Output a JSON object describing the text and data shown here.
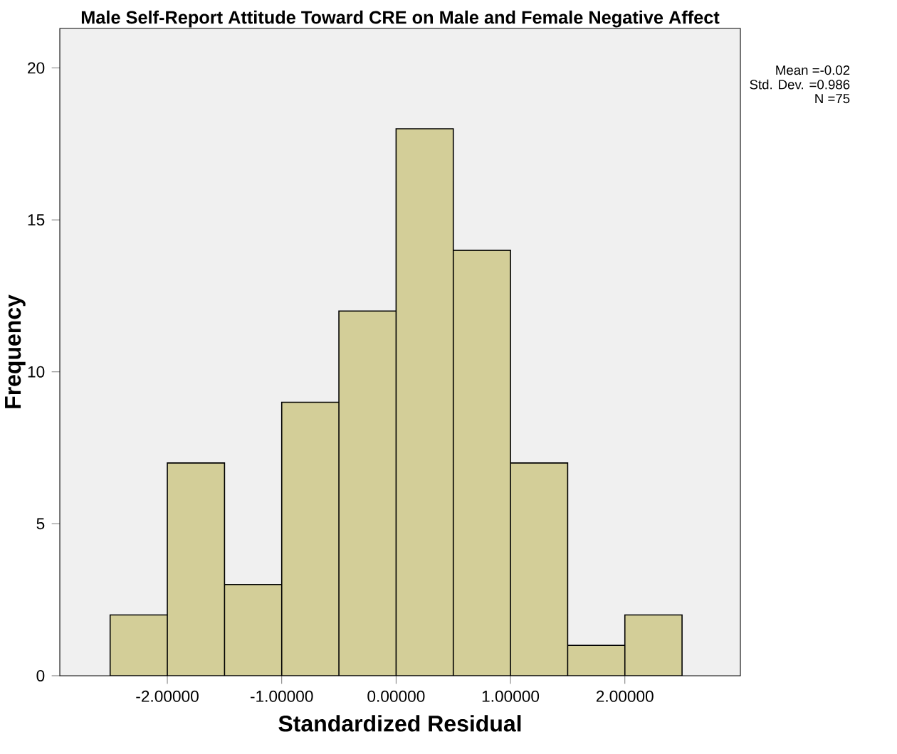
{
  "chart_data": {
    "type": "histogram",
    "title": "Male Self-Report Attitude Toward CRE on Male and Female Negative Affect",
    "xlabel": "Standardized Residual",
    "ylabel": "Frequency",
    "bins": [
      -2.5,
      -2.0,
      -1.5,
      -1.0,
      -0.5,
      0.0,
      0.5,
      1.0,
      1.5,
      2.0,
      2.5
    ],
    "values": [
      2,
      7,
      3,
      9,
      12,
      18,
      14,
      7,
      1,
      2
    ],
    "color": "#d3ce98",
    "xlim": [
      -2.94,
      3.01
    ],
    "ylim": [
      0,
      21.3
    ],
    "xticks": [
      {
        "value": -2,
        "label": "-2.00000"
      },
      {
        "value": -1,
        "label": "-1.00000"
      },
      {
        "value": 0,
        "label": "0.00000"
      },
      {
        "value": 1,
        "label": "1.00000"
      },
      {
        "value": 2,
        "label": "2.00000"
      }
    ],
    "yticks": [
      0,
      5,
      10,
      15,
      20
    ],
    "annotations": [
      "Mean =-0.02",
      "Std. Dev. =0.986",
      "N =75"
    ]
  }
}
